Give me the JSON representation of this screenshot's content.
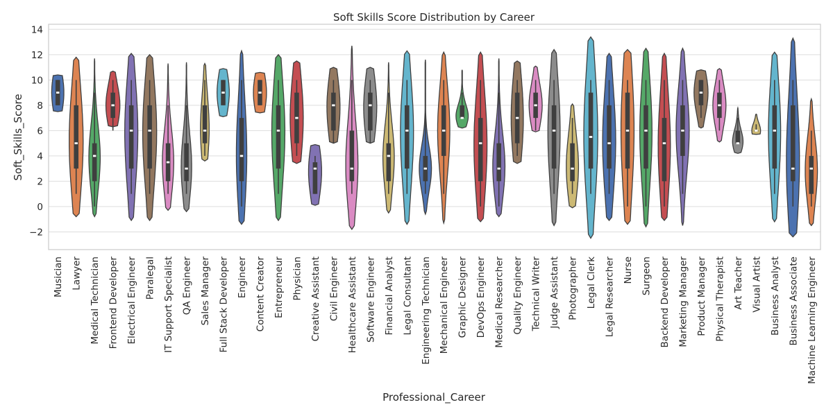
{
  "chart_data": {
    "type": "violin",
    "title": "Soft Skills Score Distribution by Career",
    "xlabel": "Professional_Career",
    "ylabel": "Soft_Skills_Score",
    "ylim": [
      -3.4,
      14.4
    ],
    "yticks": [
      -2,
      0,
      2,
      4,
      6,
      8,
      10,
      12,
      14
    ],
    "ytick_labels": [
      "−2",
      "0",
      "2",
      "4",
      "6",
      "8",
      "10",
      "12",
      "14"
    ],
    "grid": true,
    "palette": [
      "#4c72b0",
      "#dd8452",
      "#55a868",
      "#c44e52",
      "#8172b3",
      "#937860",
      "#da8bc3",
      "#8c8c8c",
      "#ccb974",
      "#64b5cd"
    ],
    "categories": [
      "Musician",
      "Lawyer",
      "Medical Technician",
      "Frontend Developer",
      "Electrical Engineer",
      "Paralegal",
      "IT Support Specialist",
      "QA Engineer",
      "Sales Manager",
      "Full Stack Developer",
      "Engineer",
      "Content Creator",
      "Entrepreneur",
      "Physician",
      "Creative Assistant",
      "Civil Engineer",
      "Healthcare Assistant",
      "Software Engineer",
      "Financial Analyst",
      "Legal Consultant",
      "Engineering Technician",
      "Mechanical Engineer",
      "Graphic Designer",
      "DevOps Engineer",
      "Medical Researcher",
      "Quality Engineer",
      "Technical Writer",
      "Judge Assistant",
      "Photographer",
      "Legal Clerk",
      "Legal Researcher",
      "Nurse",
      "Surgeon",
      "Backend Developer",
      "Marketing Manager",
      "Product Manager",
      "Physical Therapist",
      "Art Teacher",
      "Visual Artist",
      "Business Analyst",
      "Business Associate",
      "Machine Learning Engineer"
    ],
    "series": [
      {
        "min": 7.5,
        "max": 10.4,
        "q1": 8,
        "median": 9,
        "q3": 10,
        "wmin": 8,
        "wmax": 10,
        "w": 0.7
      },
      {
        "min": -0.8,
        "max": 11.8,
        "q1": 3,
        "median": 5,
        "q3": 8,
        "wmin": 1,
        "wmax": 10,
        "w": 0.8
      },
      {
        "min": -0.8,
        "max": 11.7,
        "q1": 2,
        "median": 4,
        "q3": 5,
        "wmin": 0,
        "wmax": 9,
        "w": 0.65
      },
      {
        "min": 6.3,
        "max": 10.7,
        "q1": 7,
        "median": 8,
        "q3": 9,
        "wmin": 6,
        "wmax": 10,
        "w": 0.8
      },
      {
        "min": -1.1,
        "max": 12.1,
        "q1": 3,
        "median": 6,
        "q3": 8,
        "wmin": 1,
        "wmax": 10,
        "w": 0.75
      },
      {
        "min": -1.1,
        "max": 12.0,
        "q1": 3,
        "median": 6,
        "q3": 8,
        "wmin": 1,
        "wmax": 10,
        "w": 0.8
      },
      {
        "min": -0.3,
        "max": 11.3,
        "q1": 2,
        "median": 3.5,
        "q3": 5,
        "wmin": 1,
        "wmax": 8,
        "w": 0.65
      },
      {
        "min": -0.4,
        "max": 11.4,
        "q1": 2,
        "median": 3,
        "q3": 5,
        "wmin": 1,
        "wmax": 8,
        "w": 0.6
      },
      {
        "min": 3.6,
        "max": 11.3,
        "q1": 5,
        "median": 6,
        "q3": 8,
        "wmin": 4,
        "wmax": 10,
        "w": 0.5
      },
      {
        "min": 7.1,
        "max": 10.9,
        "q1": 8,
        "median": 9,
        "q3": 10,
        "wmin": 8,
        "wmax": 10,
        "w": 0.7
      },
      {
        "min": -1.4,
        "max": 12.3,
        "q1": 2,
        "median": 4,
        "q3": 7,
        "wmin": 0,
        "wmax": 10,
        "w": 0.6
      },
      {
        "min": 7.4,
        "max": 10.6,
        "q1": 8,
        "median": 9,
        "q3": 10,
        "wmin": 8,
        "wmax": 10,
        "w": 0.75
      },
      {
        "min": -1.1,
        "max": 12.0,
        "q1": 3,
        "median": 6,
        "q3": 8,
        "wmin": 1,
        "wmax": 10,
        "w": 0.75
      },
      {
        "min": 3.4,
        "max": 11.5,
        "q1": 5,
        "median": 7,
        "q3": 9,
        "wmin": 4,
        "wmax": 10,
        "w": 0.75
      },
      {
        "min": 0.1,
        "max": 4.9,
        "q1": 1,
        "median": 3,
        "q3": 3.5,
        "wmin": 1,
        "wmax": 4,
        "w": 0.75
      },
      {
        "min": 5.0,
        "max": 11.0,
        "q1": 6,
        "median": 8,
        "q3": 9,
        "wmin": 5,
        "wmax": 10,
        "w": 0.75
      },
      {
        "min": -1.8,
        "max": 12.7,
        "q1": 2,
        "median": 3,
        "q3": 6,
        "wmin": 1,
        "wmax": 10,
        "w": 0.7
      },
      {
        "min": 5.0,
        "max": 11.0,
        "q1": 6,
        "median": 8,
        "q3": 9,
        "wmin": 5,
        "wmax": 10,
        "w": 0.75
      },
      {
        "min": -0.5,
        "max": 11.4,
        "q1": 2,
        "median": 4,
        "q3": 5,
        "wmin": 1,
        "wmax": 9,
        "w": 0.65
      },
      {
        "min": -1.4,
        "max": 12.3,
        "q1": 3,
        "median": 6,
        "q3": 8,
        "wmin": 1,
        "wmax": 10,
        "w": 0.75
      },
      {
        "min": -0.6,
        "max": 11.6,
        "q1": 2,
        "median": 3,
        "q3": 4,
        "wmin": 1,
        "wmax": 9,
        "w": 0.7
      },
      {
        "min": -1.3,
        "max": 12.2,
        "q1": 4,
        "median": 6,
        "q3": 8,
        "wmin": 1,
        "wmax": 10,
        "w": 0.7
      },
      {
        "min": 6.2,
        "max": 10.8,
        "q1": 7,
        "median": 7,
        "q3": 8,
        "wmin": 7,
        "wmax": 9,
        "w": 0.7
      },
      {
        "min": -1.2,
        "max": 12.2,
        "q1": 2,
        "median": 5,
        "q3": 7,
        "wmin": 0,
        "wmax": 10,
        "w": 0.75
      },
      {
        "min": -0.8,
        "max": 11.7,
        "q1": 2,
        "median": 3,
        "q3": 5,
        "wmin": 0,
        "wmax": 9,
        "w": 0.7
      },
      {
        "min": 3.4,
        "max": 11.5,
        "q1": 5,
        "median": 7,
        "q3": 9,
        "wmin": 4,
        "wmax": 10,
        "w": 0.7
      },
      {
        "min": 5.9,
        "max": 11.1,
        "q1": 7,
        "median": 8,
        "q3": 9,
        "wmin": 6,
        "wmax": 10,
        "w": 0.75
      },
      {
        "min": -1.5,
        "max": 12.4,
        "q1": 3,
        "median": 6,
        "q3": 8,
        "wmin": 1,
        "wmax": 10,
        "w": 0.7
      },
      {
        "min": -0.1,
        "max": 8.1,
        "q1": 2,
        "median": 3,
        "q3": 5,
        "wmin": 1,
        "wmax": 7,
        "w": 0.7
      },
      {
        "min": -2.5,
        "max": 13.4,
        "q1": 3,
        "median": 5.5,
        "q3": 9,
        "wmin": 1,
        "wmax": 10,
        "w": 0.8
      },
      {
        "min": -1.1,
        "max": 12.1,
        "q1": 3,
        "median": 5,
        "q3": 8,
        "wmin": 1,
        "wmax": 10,
        "w": 0.75
      },
      {
        "min": -1.4,
        "max": 12.4,
        "q1": 3,
        "median": 6,
        "q3": 9,
        "wmin": 0,
        "wmax": 10,
        "w": 0.75
      },
      {
        "min": -1.6,
        "max": 12.5,
        "q1": 3,
        "median": 6,
        "q3": 8,
        "wmin": 0,
        "wmax": 10,
        "w": 0.7
      },
      {
        "min": -1.1,
        "max": 12.1,
        "q1": 2,
        "median": 5,
        "q3": 7,
        "wmin": 0,
        "wmax": 10,
        "w": 0.7
      },
      {
        "min": -1.5,
        "max": 12.5,
        "q1": 4,
        "median": 6,
        "q3": 8,
        "wmin": 1,
        "wmax": 10,
        "w": 0.75
      },
      {
        "min": 6.2,
        "max": 10.8,
        "q1": 8,
        "median": 9,
        "q3": 10,
        "wmin": 7,
        "wmax": 10,
        "w": 0.8
      },
      {
        "min": 5.1,
        "max": 10.9,
        "q1": 7,
        "median": 8,
        "q3": 9,
        "wmin": 6,
        "wmax": 10,
        "w": 0.75
      },
      {
        "min": 4.2,
        "max": 7.8,
        "q1": 5,
        "median": 5,
        "q3": 6,
        "wmin": 5,
        "wmax": 7,
        "w": 0.6
      },
      {
        "min": 5.7,
        "max": 7.3,
        "q1": 6,
        "median": 6,
        "q3": 6,
        "wmin": 6,
        "wmax": 6.5,
        "w": 0.5
      },
      {
        "min": -1.2,
        "max": 12.2,
        "q1": 3,
        "median": 6,
        "q3": 8,
        "wmin": 1,
        "wmax": 10,
        "w": 0.7
      },
      {
        "min": -2.4,
        "max": 13.3,
        "q1": 2,
        "median": 3,
        "q3": 8,
        "wmin": 0,
        "wmax": 10,
        "w": 0.75
      },
      {
        "min": -1.5,
        "max": 8.5,
        "q1": 1,
        "median": 3,
        "q3": 4,
        "wmin": 0,
        "wmax": 6,
        "w": 0.7
      }
    ]
  }
}
